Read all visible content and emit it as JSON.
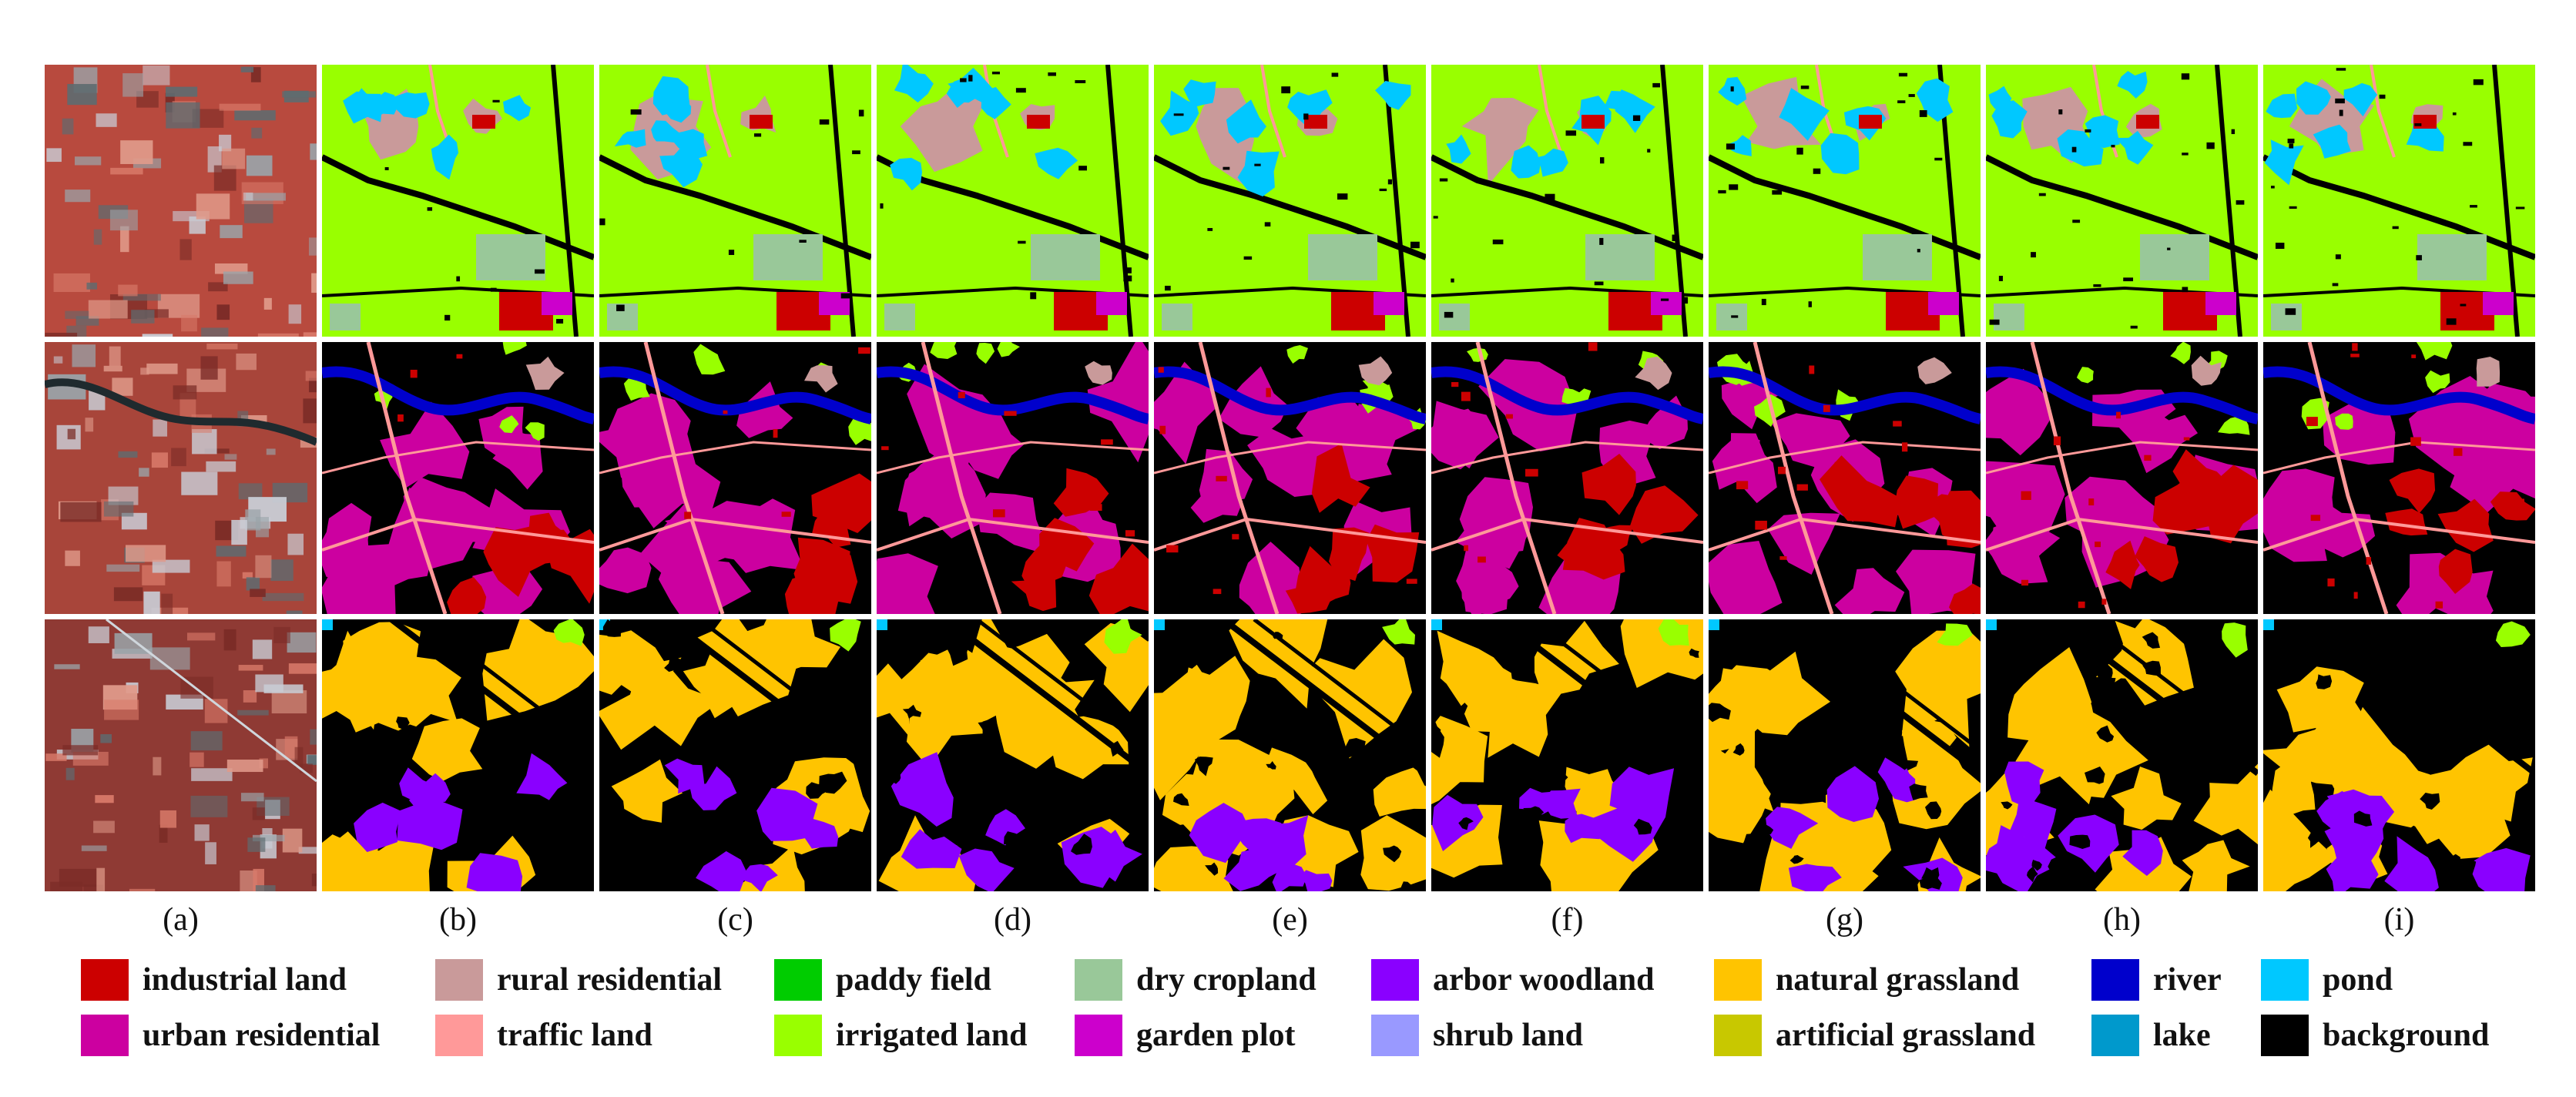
{
  "figure": {
    "column_labels": [
      "(a)",
      "(b)",
      "(c)",
      "(d)",
      "(e)",
      "(f)",
      "(g)",
      "(h)",
      "(i)"
    ],
    "rows": [
      {
        "name": "row-1",
        "scene": "agricultural",
        "base_class": "irrigated land"
      },
      {
        "name": "row-2",
        "scene": "urban",
        "base_class": "urban residential"
      },
      {
        "name": "row-3",
        "scene": "grassland",
        "base_class": "natural grassland"
      }
    ],
    "first_column": "false-color satellite image"
  },
  "legend": {
    "items": [
      {
        "label": "industrial land",
        "color": "#cc0000"
      },
      {
        "label": "rural residential",
        "color": "#c99a9a"
      },
      {
        "label": "paddy field",
        "color": "#00cc00"
      },
      {
        "label": "dry cropland",
        "color": "#99c899"
      },
      {
        "label": "arbor woodland",
        "color": "#8a00ff"
      },
      {
        "label": "natural grassland",
        "color": "#ffc400"
      },
      {
        "label": "river",
        "color": "#0000cc"
      },
      {
        "label": "pond",
        "color": "#00c8ff"
      },
      {
        "label": "urban residential",
        "color": "#cc00a0"
      },
      {
        "label": "traffic land",
        "color": "#ff9999"
      },
      {
        "label": "irrigated land",
        "color": "#99ff00"
      },
      {
        "label": "garden plot",
        "color": "#cc00cc"
      },
      {
        "label": "shrub land",
        "color": "#9999ff"
      },
      {
        "label": "artificial grassland",
        "color": "#c8c800"
      },
      {
        "label": "lake",
        "color": "#0099cc"
      },
      {
        "label": "background",
        "color": "#000000"
      }
    ]
  }
}
